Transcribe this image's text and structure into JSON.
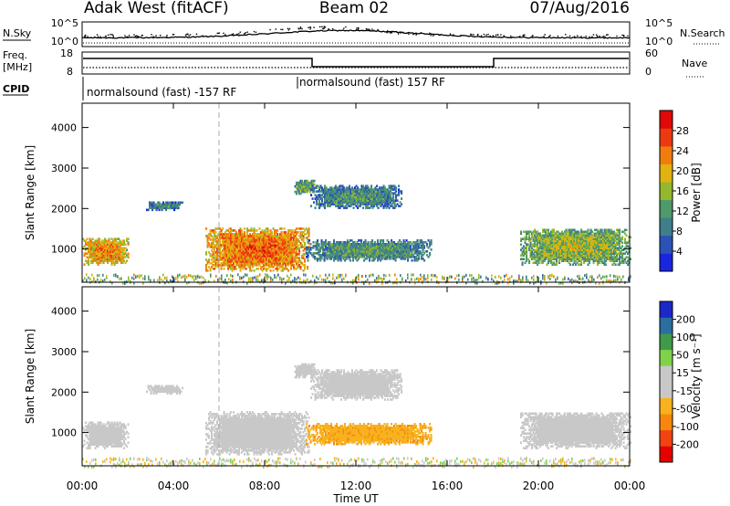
{
  "header": {
    "site": "Adak West (fitACF)",
    "beam": "Beam 02",
    "date": "07/Aug/2016"
  },
  "panels": {
    "nsky": {
      "left_label": "N.Sky",
      "right_label": "N.Search",
      "left_ticks": [
        "10^5",
        "10^0"
      ],
      "right_ticks": [
        "10^5",
        "10^0"
      ]
    },
    "freq": {
      "left_label_1": "Freq.",
      "left_label_2": "[MHz]",
      "left_ticks": [
        "18",
        "8"
      ],
      "right_ticks": [
        "60",
        "0"
      ],
      "right_label": "Nave"
    },
    "cpid": {
      "label": "CPID",
      "seg1": "normalsound (fast) -157 RF",
      "seg2": "normalsound (fast) 157 RF"
    }
  },
  "colors": {
    "power": [
      "#1a25e0",
      "#2c52b6",
      "#3f7f8c",
      "#4f9a6a",
      "#93b82e",
      "#e2b210",
      "#f07c10",
      "#ec3a10",
      "#e00808"
    ],
    "velocity": [
      "#e50000",
      "#f24410",
      "#f7880d",
      "#f7b21e",
      "#c8c8c8",
      "#c8c8c8",
      "#7fd34a",
      "#3f9a4a",
      "#2a6ea0",
      "#1c28c8"
    ]
  },
  "chart_data": [
    {
      "type": "heatmap",
      "variable": "power",
      "ylabel": "Slant Range [km]",
      "ylim": [
        180,
        4600
      ],
      "xlim": [
        0,
        24
      ],
      "yticks": [
        "1000",
        "2000",
        "3000",
        "4000"
      ],
      "colorbar_label": "Power [dB]",
      "colorbar_ticks": [
        "4",
        "8",
        "12",
        "16",
        "20",
        "24",
        "28"
      ],
      "colorbar_range": [
        0,
        32
      ],
      "regions": [
        {
          "t0": 0.0,
          "t1": 2.0,
          "r0": 600,
          "r1": 1250,
          "level": 18
        },
        {
          "t0": 2.8,
          "t1": 4.4,
          "r0": 1950,
          "r1": 2150,
          "level": 6
        },
        {
          "t0": 5.4,
          "t1": 9.9,
          "r0": 450,
          "r1": 1500,
          "level": 20
        },
        {
          "t0": 9.3,
          "t1": 10.2,
          "r0": 2350,
          "r1": 2700,
          "level": 10
        },
        {
          "t0": 10.0,
          "t1": 14.0,
          "r0": 2000,
          "r1": 2550,
          "level": 7
        },
        {
          "t0": 9.8,
          "t1": 15.3,
          "r0": 700,
          "r1": 1200,
          "level": 8
        },
        {
          "t0": 19.2,
          "t1": 24.0,
          "r0": 600,
          "r1": 1500,
          "level": 12
        }
      ]
    },
    {
      "type": "heatmap",
      "variable": "velocity",
      "ylabel": "Slant Range [km]",
      "ylim": [
        180,
        4600
      ],
      "xlim": [
        0,
        24
      ],
      "yticks": [
        "1000",
        "2000",
        "3000",
        "4000"
      ],
      "colorbar_label": "Velocity [m s⁻¹]",
      "colorbar_ticks": [
        "-200",
        "-100",
        "-50",
        "-15",
        "15",
        "50",
        "100",
        "200"
      ],
      "regions": [
        {
          "t0": 0.0,
          "t1": 2.0,
          "r0": 600,
          "r1": 1250,
          "velocity": 0
        },
        {
          "t0": 2.8,
          "t1": 4.4,
          "r0": 1950,
          "r1": 2150,
          "velocity": 0
        },
        {
          "t0": 5.4,
          "t1": 9.9,
          "r0": 450,
          "r1": 1500,
          "velocity": 0
        },
        {
          "t0": 9.3,
          "t1": 10.2,
          "r0": 2350,
          "r1": 2700,
          "velocity": 0
        },
        {
          "t0": 10.0,
          "t1": 14.0,
          "r0": 1800,
          "r1": 2550,
          "velocity": 0
        },
        {
          "t0": 9.8,
          "t1": 15.3,
          "r0": 700,
          "r1": 1200,
          "velocity": -40
        },
        {
          "t0": 19.2,
          "t1": 24.0,
          "r0": 600,
          "r1": 1500,
          "velocity": 0
        }
      ]
    }
  ],
  "xaxis": {
    "label": "Time UT",
    "ticks": [
      "00:00",
      "04:00",
      "08:00",
      "12:00",
      "16:00",
      "20:00",
      "00:00"
    ]
  }
}
